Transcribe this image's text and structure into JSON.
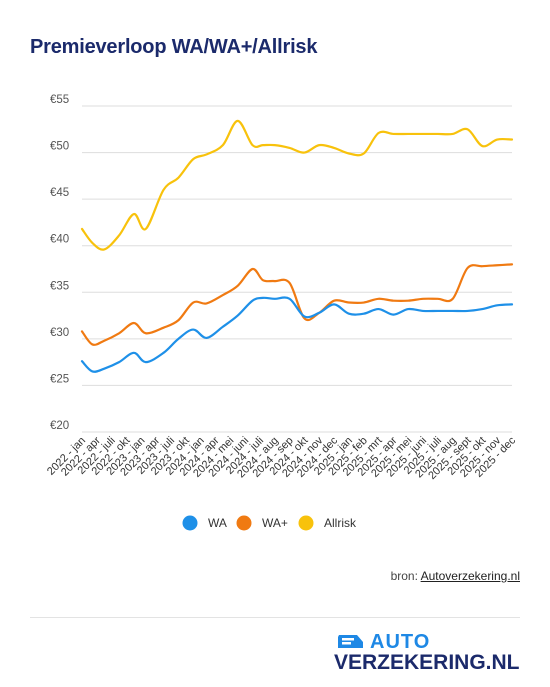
{
  "title": "Premieverloop WA/WA+/Allrisk",
  "source": {
    "prefix": "bron: ",
    "link_text": "Autoverzekering.nl"
  },
  "logo": {
    "line1": "AUTO",
    "line2": "VERZEKERING.NL"
  },
  "colors": {
    "WA": "#1e90e8",
    "WA+": "#f07a12",
    "Allrisk": "#f8c20c",
    "grid": "#dddddd",
    "title": "#1b2a6b"
  },
  "chart_data": {
    "type": "line",
    "title": "Premieverloop WA/WA+/Allrisk",
    "ylim": [
      20,
      55
    ],
    "y_ticks": [
      "€20",
      "€25",
      "€30",
      "€35",
      "€40",
      "€45",
      "€50",
      "€55"
    ],
    "y_tick_values": [
      20,
      25,
      30,
      35,
      40,
      45,
      50,
      55
    ],
    "grid": true,
    "legend_position": "bottom",
    "x_tick_labels": [
      "2022 - jan",
      "2022 - apr",
      "2022 - juli",
      "2022 - okt",
      "2023 - jan",
      "2023 - apr",
      "2023 - juli",
      "2023 - okt",
      "2024 - jan",
      "2024 - apr",
      "2024 - mei",
      "2024 - juni",
      "2024 - juli",
      "2024 - aug",
      "2024 - sep",
      "2024 - okt",
      "2024 - nov",
      "2024 - dec",
      "2025 - jan",
      "2025 - feb",
      "2025 - mrt",
      "2025 - apr",
      "2025 - mei",
      "2025 - juni",
      "2025 - juli",
      "2025 - aug",
      "2025 - sept",
      "2025 - okt",
      "2025 - nov",
      "2025 - dec"
    ],
    "x_range": [
      0,
      29
    ],
    "series": [
      {
        "name": "WA",
        "x": [
          0,
          0.7,
          1.5,
          2.5,
          3.5,
          4.3,
          5.5,
          6.5,
          7.5,
          8.4,
          9.5,
          10.5,
          11.5,
          12.2,
          13,
          14,
          15,
          16,
          17,
          18,
          19,
          20,
          21,
          22,
          23,
          24,
          25,
          26,
          27,
          28,
          29
        ],
        "values": [
          27.6,
          26.5,
          26.8,
          27.5,
          28.5,
          27.5,
          28.5,
          30,
          31,
          30.1,
          31.3,
          32.5,
          34.1,
          34.4,
          34.3,
          34.3,
          32.4,
          32.8,
          33.7,
          32.7,
          32.7,
          33.2,
          32.6,
          33.2,
          33,
          33,
          33,
          33,
          33.2,
          33.6,
          33.7
        ]
      },
      {
        "name": "WA+",
        "x": [
          0,
          0.7,
          1.5,
          2.5,
          3.5,
          4.3,
          5.5,
          6.5,
          7.5,
          8.4,
          9.5,
          10.5,
          11.5,
          12.2,
          13,
          14,
          15,
          16,
          17,
          18,
          19,
          20,
          21,
          22,
          23,
          24,
          25,
          26,
          27,
          28,
          29
        ],
        "values": [
          30.8,
          29.4,
          29.8,
          30.6,
          31.7,
          30.6,
          31.2,
          32,
          33.9,
          33.8,
          34.7,
          35.7,
          37.5,
          36.3,
          36.2,
          36,
          32.2,
          32.8,
          34.1,
          33.9,
          33.9,
          34.3,
          34.1,
          34.1,
          34.3,
          34.3,
          34.3,
          37.6,
          37.8,
          37.9,
          38
        ]
      },
      {
        "name": "Allrisk",
        "x": [
          0,
          0.7,
          1.5,
          2.5,
          3.5,
          4.3,
          5.5,
          6.5,
          7.5,
          8.4,
          9.5,
          10.5,
          11.5,
          12.2,
          13,
          14,
          15,
          16,
          17,
          18,
          19,
          20,
          21,
          22,
          23,
          24,
          25,
          26,
          27,
          28,
          29
        ],
        "values": [
          41.8,
          40.3,
          39.6,
          41.1,
          43.4,
          41.8,
          46,
          47.3,
          49.3,
          49.8,
          50.8,
          53.4,
          50.8,
          50.8,
          50.8,
          50.5,
          50,
          50.8,
          50.5,
          49.9,
          49.9,
          52.1,
          52,
          52,
          52,
          52,
          52,
          52.5,
          50.7,
          51.4,
          51.4
        ]
      }
    ]
  }
}
